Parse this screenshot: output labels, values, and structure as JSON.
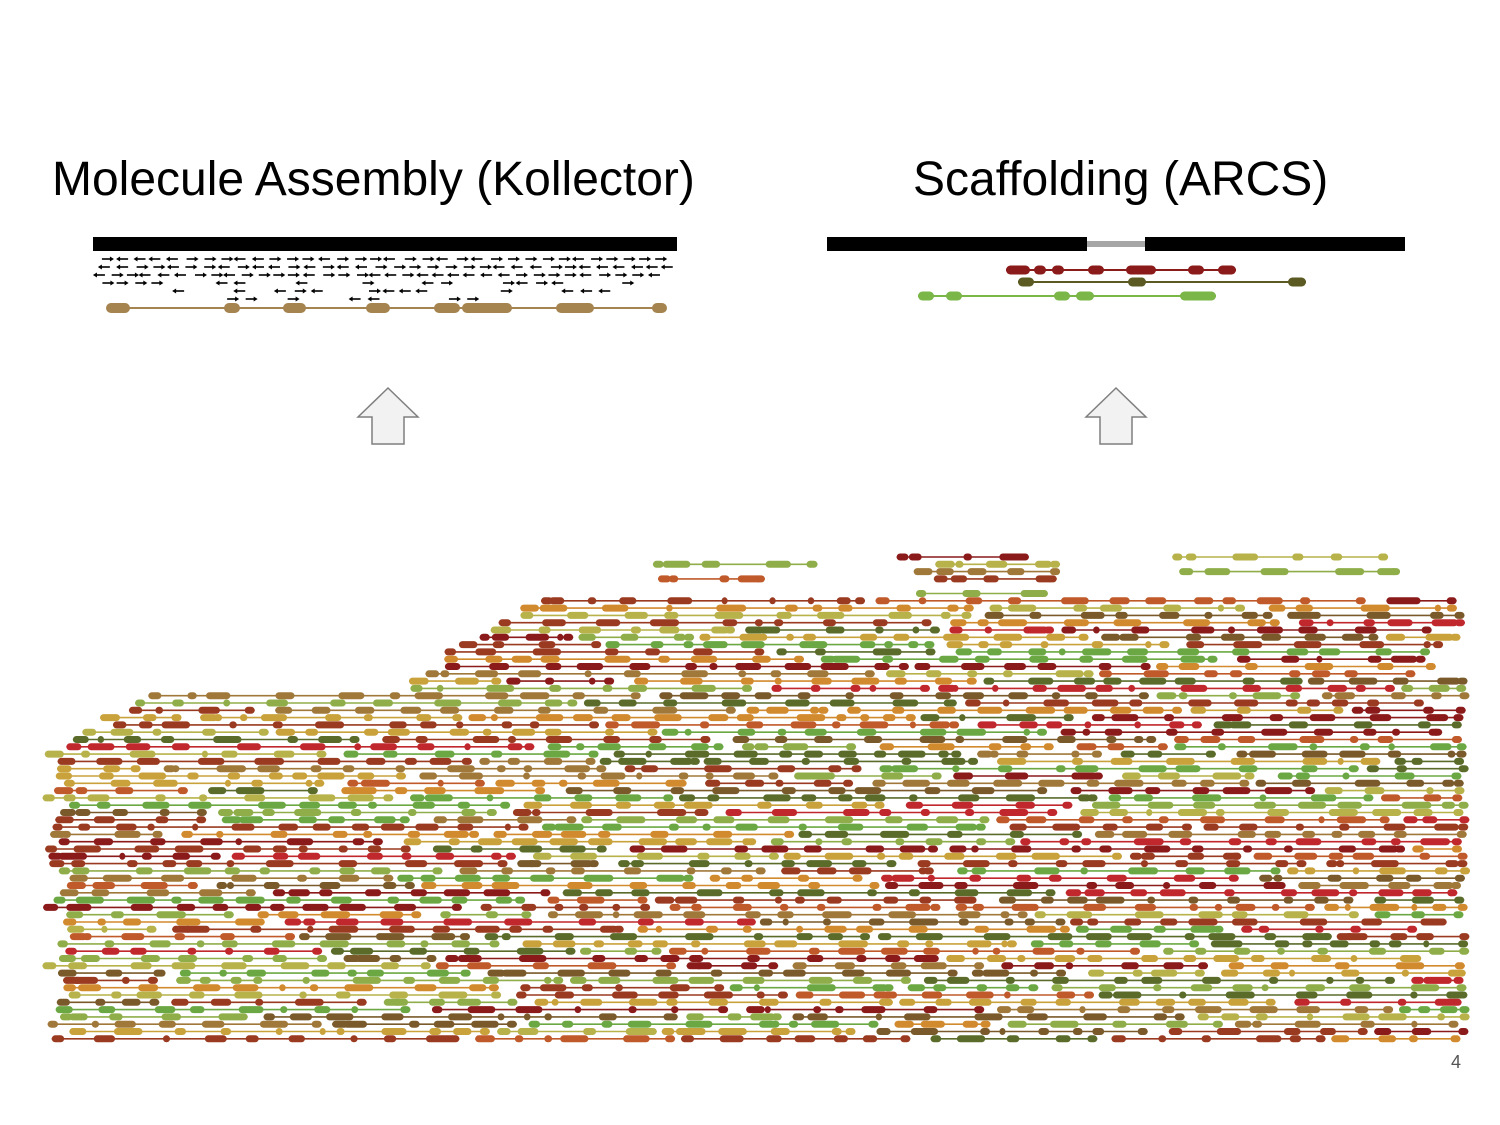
{
  "slide": {
    "left_title": "Molecule Assembly (Kollector)",
    "right_title": "Scaffolding (ARCS)",
    "page_number": "4"
  },
  "colors": {
    "contig": "#000000",
    "gap": "#a6a6a6",
    "arrow_fill": "#f2f2f2",
    "arrow_stroke": "#7f7f7f",
    "kollector_molecule": "#a58450",
    "molecule_palette": [
      "#c0282d",
      "#8b1a1a",
      "#d28a2e",
      "#c9a23c",
      "#b7b24a",
      "#8fae4a",
      "#6ba843",
      "#5a6b2a",
      "#7a5a2a",
      "#a0783a",
      "#c05a2a",
      "#9a3a20"
    ]
  },
  "icons": {
    "up_arrow": "up-arrow-icon",
    "read_arrows": "read-arrow-icon"
  }
}
